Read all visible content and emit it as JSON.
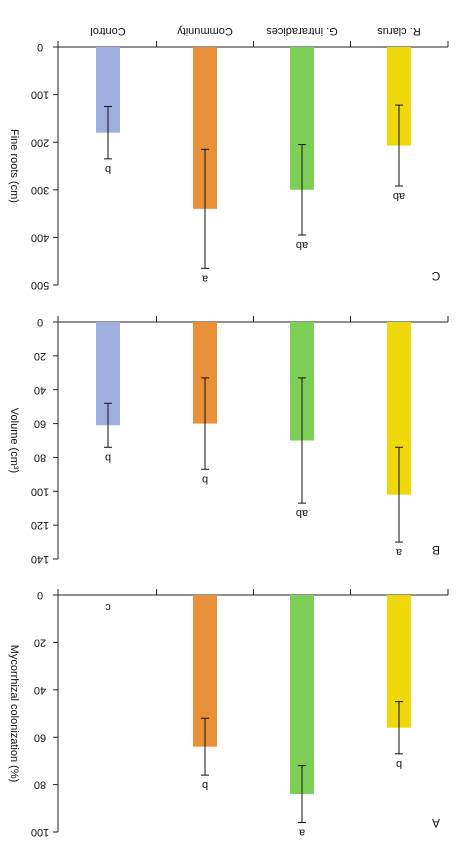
{
  "chart_data": [
    {
      "type": "bar",
      "panel_label": "C",
      "ylabel": "Fine roots (cm)",
      "ylim": [
        0,
        500
      ],
      "yticks": [
        0,
        100,
        200,
        300,
        400,
        500
      ],
      "categories": [
        "Control",
        "Community",
        "G. intraradices",
        "R. clarus"
      ],
      "values": [
        180,
        340,
        300,
        207
      ],
      "errors": [
        55,
        125,
        95,
        85
      ],
      "significance": [
        "b",
        "a",
        "ab",
        "ab"
      ],
      "colors": [
        "#9fafdf",
        "#e8903a",
        "#7ecf55",
        "#efd80c"
      ],
      "orientation": "rotated-180",
      "show_category_labels": true
    },
    {
      "type": "bar",
      "panel_label": "B",
      "ylabel": "Volume (cm³)",
      "ylim": [
        0,
        140
      ],
      "yticks": [
        0,
        20,
        40,
        60,
        80,
        100,
        120,
        140
      ],
      "categories": [
        "Control",
        "Community",
        "G. intraradices",
        "R. clarus"
      ],
      "values": [
        61,
        60,
        70,
        102
      ],
      "errors": [
        13,
        27,
        37,
        28
      ],
      "significance": [
        "b",
        "b",
        "ab",
        "a"
      ],
      "colors": [
        "#9fafdf",
        "#e8903a",
        "#7ecf55",
        "#efd80c"
      ],
      "orientation": "rotated-180",
      "show_category_labels": false
    },
    {
      "type": "bar",
      "panel_label": "A",
      "ylabel": "Mycorrhizal colonization (%)",
      "ylim": [
        0,
        100
      ],
      "yticks": [
        0,
        20,
        40,
        60,
        80,
        100
      ],
      "categories": [
        "Control",
        "Community",
        "G. intraradices",
        "R. clarus"
      ],
      "values": [
        0,
        64,
        84,
        56
      ],
      "errors": [
        0,
        12,
        12,
        11
      ],
      "significance": [
        "c",
        "b",
        "a",
        "b"
      ],
      "colors": [
        "#9fafdf",
        "#e8903a",
        "#7ecf55",
        "#efd80c"
      ],
      "orientation": "rotated-180",
      "show_category_labels": false
    }
  ]
}
